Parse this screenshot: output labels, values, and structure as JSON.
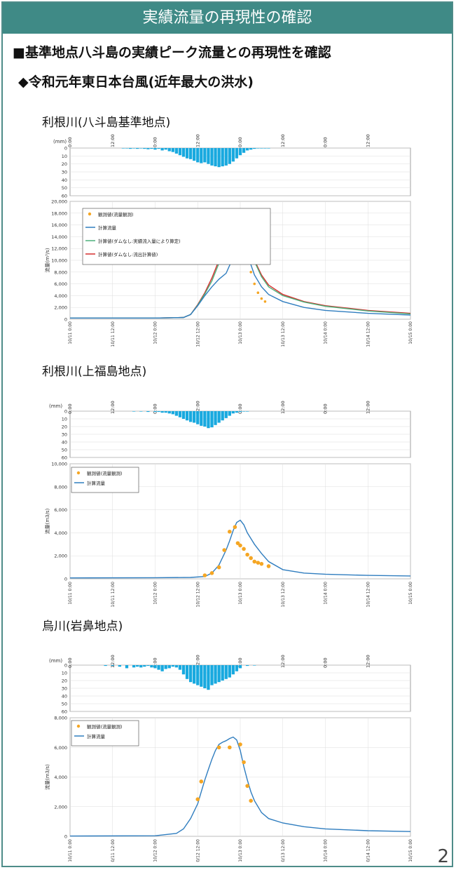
{
  "header": {
    "banner": "実績流量の再現性の確認",
    "line1": "■基準地点八斗島の実績ピーク流量との再現性を確認",
    "line2": "◆令和元年東日本台風(近年最大の洪水)",
    "page_number": "2"
  },
  "colors": {
    "banner": "#3f8a86",
    "rain": "#18a9df",
    "observed": "#f5a623",
    "computed": "#2f7dbf",
    "green": "#4cb07a",
    "red": "#d62d2d"
  },
  "chart_data": [
    {
      "type": "line",
      "title": "利根川(八斗島基準地点)",
      "rain_unit": "(mm)",
      "top_ticks": [
        "0:00",
        "12:00",
        "0:00",
        "12:00",
        "0:00",
        "12:00",
        "0:00",
        "12:00"
      ],
      "rain_ylim": [
        0,
        60
      ],
      "rain_yticks": [
        0,
        10,
        20,
        30,
        40,
        50,
        60
      ],
      "rain_x": [
        15,
        16,
        17,
        18,
        19,
        20,
        21,
        22,
        23,
        24,
        25,
        26,
        27,
        28,
        29,
        30,
        31,
        32,
        33,
        34,
        35,
        36,
        37,
        38,
        39,
        40,
        41,
        42,
        43,
        44,
        45,
        46,
        47,
        48,
        49,
        50,
        51,
        52,
        53,
        54,
        55,
        56
      ],
      "rain_values": [
        0.5,
        0.5,
        1,
        0.5,
        1,
        0.5,
        1,
        1.5,
        1,
        2,
        1,
        3,
        2,
        4,
        5,
        7,
        9,
        11,
        13,
        14,
        16,
        18,
        19,
        18,
        20,
        22,
        23,
        24,
        23,
        22,
        20,
        17,
        13,
        9,
        6,
        3,
        2,
        1,
        0.5,
        0.5,
        0.5,
        0.5
      ],
      "ylabel": "流量(m³/s)",
      "ylim": [
        0,
        20000
      ],
      "yticks": [
        "0",
        "2,000",
        "4,000",
        "6,000",
        "8,000",
        "10,000",
        "12,000",
        "14,000",
        "16,000",
        "18,000",
        "20,000"
      ],
      "x_range_hours": [
        0,
        96
      ],
      "x_tick_hours": [
        0,
        12,
        24,
        36,
        48,
        60,
        72,
        84,
        96
      ],
      "xticks": [
        "10/11 0:00",
        "10/11 12:00",
        "10/12 0:00",
        "10/12 12:00",
        "10/13 0:00",
        "10/13 12:00",
        "10/14 0:00",
        "10/14 12:00",
        "10/15 0:00"
      ],
      "legend": [
        "観測値(流量観測)",
        "計算流量",
        "計算値(ダムなし:実績流入量により算定)",
        "計算値(ダムなし:流出計算値)"
      ],
      "series": [
        {
          "name": "計算値(ダムなし:流出計算値)",
          "color": "red",
          "x": [
            0,
            24,
            32,
            34,
            36,
            38,
            40,
            42,
            44,
            46,
            47,
            48,
            49,
            50,
            52,
            54,
            56,
            60,
            66,
            72,
            84,
            96
          ],
          "y": [
            200,
            200,
            300,
            800,
            2500,
            4500,
            7000,
            10000,
            13000,
            16000,
            17200,
            17400,
            16500,
            15000,
            10000,
            7500,
            5800,
            4200,
            3000,
            2300,
            1500,
            1000
          ]
        },
        {
          "name": "計算値(ダムなし:実績流入量により算定)",
          "color": "green",
          "x": [
            0,
            24,
            32,
            34,
            36,
            38,
            40,
            42,
            44,
            46,
            47,
            48,
            49,
            50,
            52,
            54,
            56,
            60,
            66,
            72,
            84,
            96
          ],
          "y": [
            200,
            200,
            300,
            800,
            2400,
            4300,
            6500,
            9500,
            12500,
            15500,
            16800,
            16900,
            16000,
            14500,
            9800,
            7200,
            5500,
            4000,
            2900,
            2200,
            1400,
            900
          ]
        },
        {
          "name": "計算流量",
          "color": "computed",
          "x": [
            0,
            24,
            32,
            34,
            36,
            38,
            40,
            42,
            44,
            46,
            47,
            48,
            49,
            50,
            52,
            54,
            56,
            60,
            66,
            72,
            84,
            96
          ],
          "y": [
            200,
            200,
            300,
            800,
            2300,
            4000,
            5500,
            6800,
            7800,
            10500,
            12500,
            13400,
            12500,
            11000,
            7500,
            5500,
            4200,
            3000,
            2000,
            1500,
            1000,
            700
          ]
        }
      ],
      "observed": {
        "name": "観測値(流量観測)",
        "x": [
          45,
          47,
          48,
          49,
          50,
          51,
          52,
          53,
          54,
          55
        ],
        "y": [
          10500,
          13000,
          13500,
          12000,
          10000,
          8000,
          6000,
          4500,
          3500,
          3000
        ]
      }
    },
    {
      "type": "line",
      "title": "利根川(上福島地点)",
      "rain_unit": "(mm)",
      "top_ticks": [
        "0:00",
        "12:00",
        "0:00",
        "12:00",
        "0:00",
        "12:00",
        "0:00",
        "12:00"
      ],
      "rain_ylim": [
        0,
        60
      ],
      "rain_yticks": [
        0,
        10,
        20,
        30,
        40,
        50,
        60
      ],
      "rain_x": [
        18,
        20,
        22,
        24,
        25,
        26,
        27,
        28,
        29,
        30,
        31,
        32,
        33,
        34,
        35,
        36,
        37,
        38,
        39,
        40,
        41,
        42,
        43,
        44,
        45,
        46,
        47,
        48,
        49,
        50
      ],
      "rain_values": [
        0.5,
        0.5,
        1,
        1,
        1,
        2,
        2,
        3,
        4,
        6,
        8,
        10,
        12,
        14,
        15,
        17,
        19,
        20,
        22,
        21,
        18,
        15,
        12,
        9,
        6,
        3,
        2,
        1,
        0.5,
        0.5
      ],
      "ylabel": "流量(m3/s)",
      "ylim": [
        0,
        10000
      ],
      "yticks": [
        "0",
        "2,000",
        "4,000",
        "6,000",
        "8,000",
        "10,000"
      ],
      "x_range_hours": [
        0,
        96
      ],
      "x_tick_hours": [
        0,
        12,
        24,
        36,
        48,
        60,
        72,
        84,
        96
      ],
      "xticks": [
        "10/11 0:00",
        "10/11 12:00",
        "10/12 0:00",
        "10/12 12:00",
        "10/13 0:00",
        "10/13 12:00",
        "10/14 0:00",
        "10/14 12:00",
        "10/15 0:00"
      ],
      "legend": [
        "観測値(流量観測)",
        "計算流量"
      ],
      "series": [
        {
          "name": "計算流量",
          "color": "computed",
          "x": [
            0,
            24,
            34,
            38,
            40,
            42,
            44,
            45,
            46,
            47,
            48,
            49,
            50,
            52,
            54,
            56,
            60,
            66,
            72,
            84,
            96
          ],
          "y": [
            80,
            100,
            120,
            200,
            500,
            1200,
            2500,
            3300,
            4200,
            4900,
            5100,
            4700,
            4000,
            3000,
            2200,
            1500,
            800,
            500,
            400,
            300,
            250
          ]
        }
      ],
      "observed": {
        "name": "観測値(流量観測)",
        "x": [
          38,
          40,
          42,
          43.5,
          45,
          46.5,
          47.3,
          48,
          49,
          50,
          51,
          52,
          53,
          54,
          56
        ],
        "y": [
          300,
          500,
          1000,
          2500,
          4100,
          4500,
          3100,
          2900,
          2600,
          2100,
          1800,
          1500,
          1400,
          1300,
          1100
        ]
      }
    },
    {
      "type": "line",
      "title": "烏川(岩鼻地点)",
      "rain_unit": "(mm)",
      "top_ticks": [
        "0:00",
        "12:00",
        "0:00",
        "12:00",
        "0:00",
        "12:00",
        "0:00",
        "12:00"
      ],
      "rain_ylim": [
        0,
        60
      ],
      "rain_yticks": [
        0,
        10,
        20,
        30,
        40,
        50,
        60
      ],
      "rain_x": [
        10,
        12,
        14,
        16,
        18,
        19,
        20,
        21,
        22,
        23,
        24,
        25,
        26,
        27,
        28,
        29,
        30,
        31,
        32,
        33,
        34,
        35,
        36,
        37,
        38,
        39,
        40,
        41,
        42,
        43,
        44,
        45,
        46,
        47,
        48,
        50,
        52
      ],
      "rain_values": [
        1,
        1,
        2,
        4,
        3,
        2,
        3,
        2,
        1,
        3,
        4,
        6,
        8,
        5,
        4,
        2,
        3,
        6,
        12,
        18,
        22,
        24,
        26,
        28,
        30,
        32,
        26,
        24,
        22,
        20,
        18,
        16,
        12,
        8,
        4,
        1,
        0.5
      ],
      "ylabel": "流量(m3/s)",
      "ylim": [
        0,
        8000
      ],
      "yticks": [
        "0",
        "2,000",
        "4,000",
        "6,000",
        "8,000"
      ],
      "x_range_hours": [
        0,
        96
      ],
      "x_tick_hours": [
        0,
        12,
        24,
        36,
        48,
        60,
        72,
        84,
        96
      ],
      "xticks": [
        "10/11 0:00",
        "0/11 12:00",
        "10/12 0:00",
        "0/12 12:00",
        "10/13 0:00",
        "0/13 12:00",
        "10/14 0:00",
        "0/14 12:00",
        "10/15 0:00"
      ],
      "legend": [
        "観測値(流量観測)",
        "計算流量"
      ],
      "series": [
        {
          "name": "計算流量",
          "color": "computed",
          "x": [
            0,
            24,
            30,
            32,
            34,
            36,
            37,
            38,
            39,
            40,
            41,
            42,
            43,
            44,
            45,
            46,
            47,
            48,
            49,
            50,
            51,
            52,
            54,
            56,
            60,
            66,
            72,
            84,
            96
          ],
          "y": [
            20,
            40,
            200,
            500,
            1200,
            2200,
            3000,
            3800,
            4500,
            5200,
            5800,
            6200,
            6350,
            6450,
            6600,
            6700,
            6500,
            5800,
            4700,
            3800,
            3000,
            2400,
            1600,
            1200,
            900,
            650,
            500,
            380,
            320
          ]
        }
      ],
      "observed": {
        "name": "観測値(流量観測)",
        "x": [
          36,
          37,
          42,
          45,
          48,
          49,
          50,
          51
        ],
        "y": [
          2500,
          3700,
          6000,
          6000,
          6200,
          5000,
          3400,
          2400
        ]
      }
    }
  ]
}
